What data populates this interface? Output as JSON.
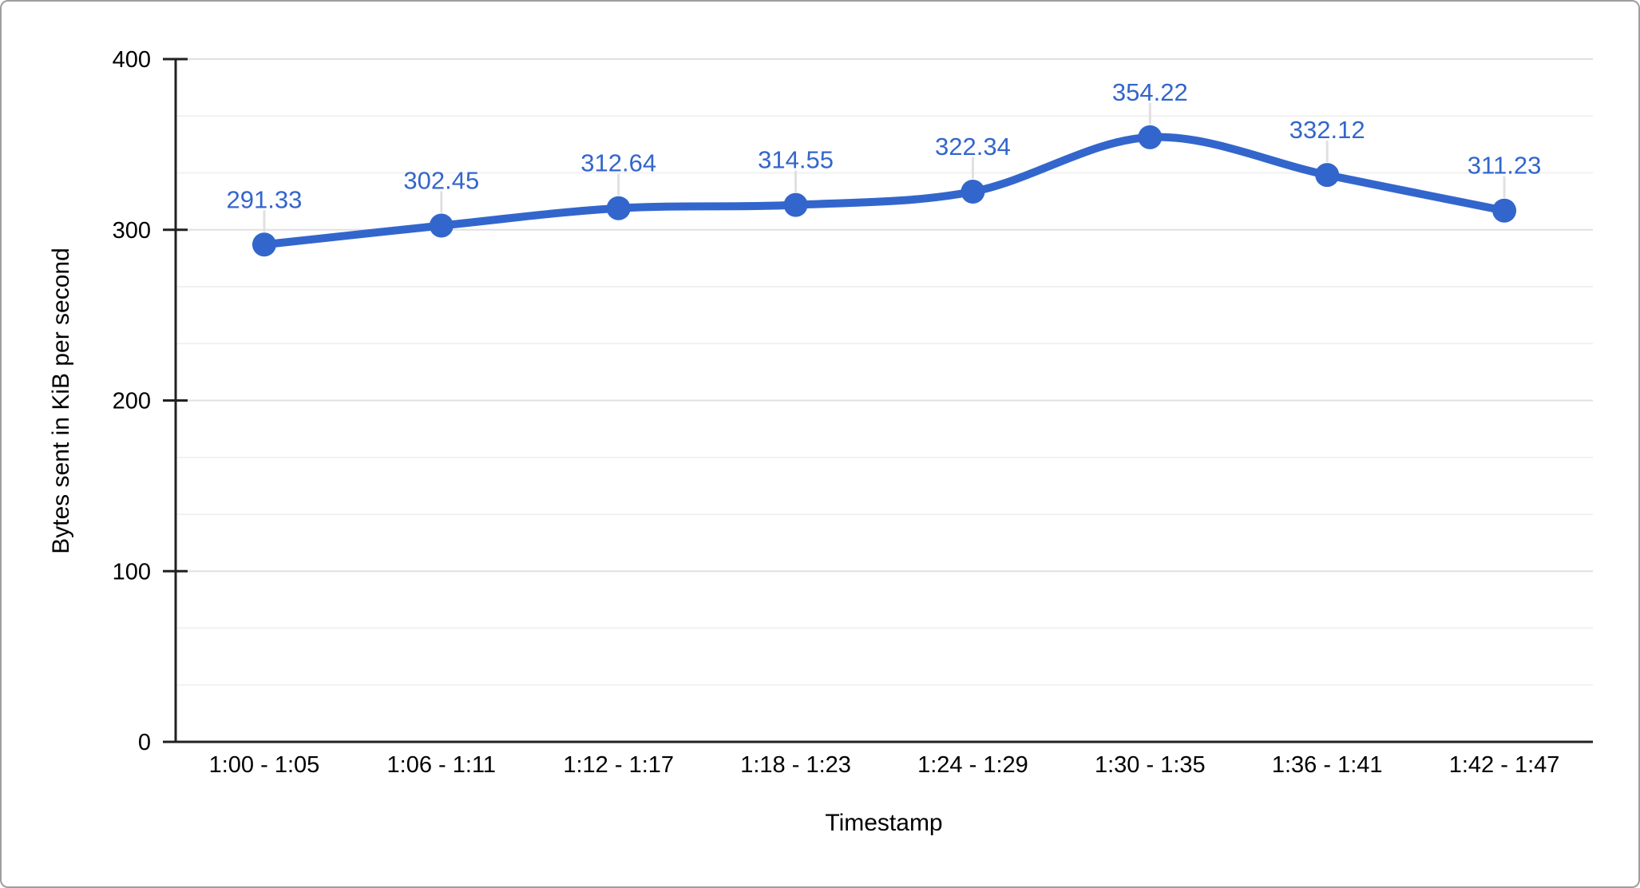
{
  "page": {
    "background": "#ffffff",
    "border_color": "#9e9e9e"
  },
  "chart_data": {
    "type": "line",
    "title": "",
    "xlabel": "Timestamp",
    "ylabel": "Bytes sent in KiB per second",
    "categories": [
      "1:00 - 1:05",
      "1:06 - 1:11",
      "1:12 - 1:17",
      "1:18 - 1:23",
      "1:24 - 1:29",
      "1:30 - 1:35",
      "1:36 - 1:41",
      "1:42 - 1:47"
    ],
    "values": [
      291.33,
      302.45,
      312.64,
      314.55,
      322.34,
      354.22,
      332.12,
      311.23
    ],
    "point_labels": [
      "291.33",
      "302.45",
      "312.64",
      "314.55",
      "322.34",
      "354.22",
      "332.12",
      "311.23"
    ],
    "ylim": [
      0,
      400
    ],
    "y_ticks": [
      0,
      100,
      200,
      300,
      400
    ],
    "y_tick_labels": [
      "0",
      "100",
      "200",
      "300",
      "400"
    ],
    "minor_gridlines_per_interval": 2,
    "grid": true,
    "legend_position": "none",
    "line_smooth": true,
    "colors": {
      "series": "#3366cc",
      "axis": "#212121",
      "tick_label": "#000000",
      "gridline_major": "#e0e0e0",
      "gridline_minor": "#f1f1f1",
      "label_callout": "#e0e0e0"
    }
  }
}
